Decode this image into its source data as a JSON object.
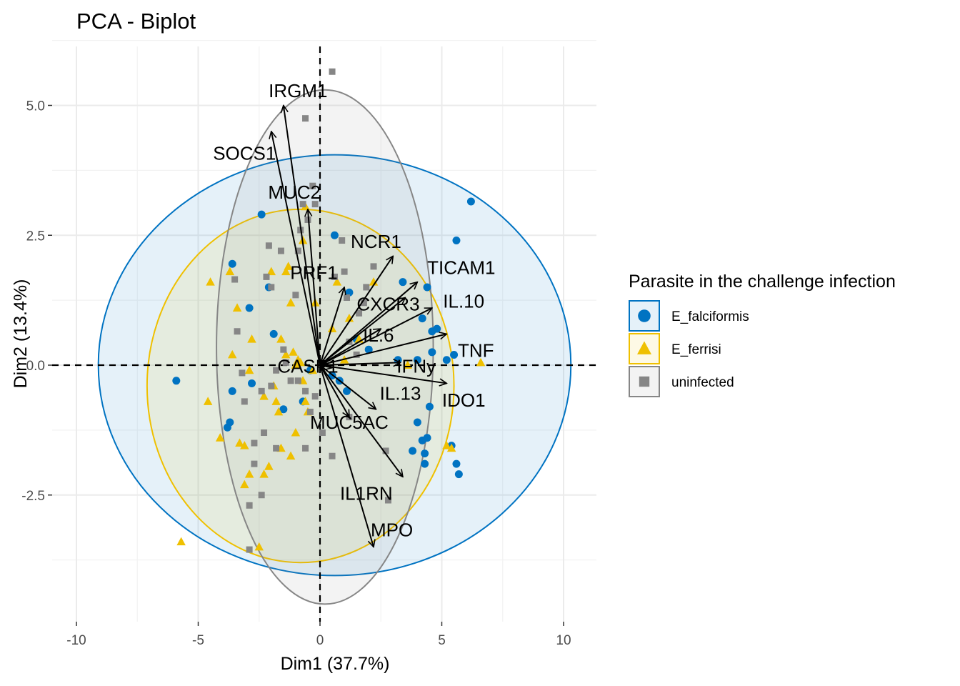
{
  "chart_data": {
    "type": "scatter",
    "title": "PCA - Biplot",
    "xlabel": "Dim1 (37.7%)",
    "ylabel": "Dim2 (13.4%)",
    "xlim": [
      -10,
      11.3
    ],
    "ylim": [
      -5.0,
      6.0
    ],
    "xticks": [
      -10,
      -5,
      0,
      5,
      10
    ],
    "xtick_labels": [
      "-10",
      "-5",
      "0",
      "5",
      "10"
    ],
    "yticks": [
      -2.5,
      0.0,
      2.5,
      5.0
    ],
    "ytick_labels": [
      "-2.5",
      "0.0",
      "2.5",
      "5.0"
    ],
    "grid": true,
    "legend": {
      "title": "Parasite in the challenge infection",
      "placement": "right"
    },
    "series": [
      {
        "name": "E_falciformis",
        "color": "#0073C2",
        "marker": "circle",
        "ellipse": {
          "cx": 0.6,
          "cy": 0.0,
          "rx": 9.7,
          "ry": 4.05
        },
        "points": [
          [
            -5.9,
            -0.3
          ],
          [
            -2.4,
            2.9
          ],
          [
            -3.6,
            1.95
          ],
          [
            -2.9,
            1.1
          ],
          [
            -2.1,
            1.5
          ],
          [
            -1.9,
            0.6
          ],
          [
            -3.6,
            -0.5
          ],
          [
            -2.8,
            -0.35
          ],
          [
            -3.8,
            -1.2
          ],
          [
            -3.7,
            -1.1
          ],
          [
            -1.5,
            -0.85
          ],
          [
            -0.7,
            -0.7
          ],
          [
            -0.4,
            -0.1
          ],
          [
            0.5,
            -0.2
          ],
          [
            0.8,
            -0.3
          ],
          [
            1.1,
            -0.5
          ],
          [
            1.2,
            1.4
          ],
          [
            0.6,
            2.5
          ],
          [
            1.5,
            0.5
          ],
          [
            2.0,
            0.3
          ],
          [
            3.2,
            0.1
          ],
          [
            3.4,
            1.6
          ],
          [
            4.0,
            0.1
          ],
          [
            4.5,
            -0.8
          ],
          [
            4.0,
            -1.1
          ],
          [
            4.2,
            -1.45
          ],
          [
            4.4,
            -1.4
          ],
          [
            3.8,
            -1.65
          ],
          [
            4.3,
            -1.7
          ],
          [
            4.3,
            -1.9
          ],
          [
            5.2,
            0.1
          ],
          [
            4.6,
            0.25
          ],
          [
            4.6,
            0.65
          ],
          [
            4.2,
            0.9
          ],
          [
            4.8,
            0.7
          ],
          [
            4.4,
            1.5
          ],
          [
            5.5,
            0.2
          ],
          [
            5.6,
            2.4
          ],
          [
            6.2,
            3.15
          ],
          [
            5.6,
            -1.9
          ],
          [
            5.7,
            -2.1
          ],
          [
            5.4,
            -1.55
          ]
        ]
      },
      {
        "name": "E_ferrisi",
        "color": "#EFC000",
        "marker": "triangle",
        "ellipse": {
          "cx": -0.8,
          "cy": -0.4,
          "rx": 6.3,
          "ry": 3.4
        },
        "points": [
          [
            -5.7,
            -3.4
          ],
          [
            -4.5,
            1.6
          ],
          [
            -4.6,
            -0.7
          ],
          [
            -4.1,
            -1.4
          ],
          [
            -3.7,
            1.8
          ],
          [
            -3.6,
            0.2
          ],
          [
            -3.3,
            -1.5
          ],
          [
            -3.1,
            -1.55
          ],
          [
            -3.1,
            -2.3
          ],
          [
            -3.4,
            1.1
          ],
          [
            -2.9,
            -0.1
          ],
          [
            -2.8,
            0.5
          ],
          [
            -2.3,
            -0.6
          ],
          [
            -2.3,
            -2.1
          ],
          [
            -2.1,
            -1.95
          ],
          [
            -1.9,
            -0.4
          ],
          [
            -1.8,
            -0.7
          ],
          [
            -1.7,
            -0.9
          ],
          [
            -1.6,
            -1.6
          ],
          [
            -1.4,
            1.8
          ],
          [
            -1.3,
            1.9
          ],
          [
            -1.2,
            1.2
          ],
          [
            -1.0,
            -1.3
          ],
          [
            -0.9,
            0.1
          ],
          [
            -0.7,
            -0.3
          ],
          [
            -0.6,
            -0.7
          ],
          [
            -0.5,
            -0.9
          ],
          [
            -0.2,
            1.2
          ],
          [
            -0.3,
            -0.1
          ],
          [
            -1.2,
            -1.75
          ],
          [
            -1.6,
            0.5
          ],
          [
            -1.4,
            0.2
          ],
          [
            -1.1,
            0.25
          ],
          [
            -1.0,
            0.0
          ],
          [
            -0.8,
            0.05
          ],
          [
            0.7,
            1.6
          ],
          [
            0.5,
            0.7
          ],
          [
            1.0,
            0.1
          ],
          [
            1.2,
            0.9
          ],
          [
            1.6,
            0.5
          ],
          [
            2.2,
            1.6
          ],
          [
            3.6,
            0.0
          ],
          [
            5.2,
            -1.55
          ],
          [
            5.4,
            -1.6
          ],
          [
            6.6,
            0.05
          ],
          [
            -2.5,
            -3.5
          ],
          [
            -0.6,
            3.05
          ],
          [
            -0.7,
            2.4
          ],
          [
            -2.9,
            -2.1
          ],
          [
            -2.0,
            1.8
          ]
        ]
      },
      {
        "name": "uninfected",
        "color": "#868686",
        "marker": "square",
        "ellipse": {
          "cx": 0.2,
          "cy": 0.35,
          "rx": 4.45,
          "ry": 4.95
        },
        "points": [
          [
            0.5,
            5.65
          ],
          [
            -0.6,
            4.75
          ],
          [
            -0.2,
            3.1
          ],
          [
            -0.3,
            3.45
          ],
          [
            -2.1,
            2.3
          ],
          [
            -1.6,
            2.2
          ],
          [
            -0.9,
            2.2
          ],
          [
            -2.2,
            1.7
          ],
          [
            -2.0,
            1.5
          ],
          [
            -1.0,
            1.35
          ],
          [
            -0.8,
            2.6
          ],
          [
            -0.7,
            3.1
          ],
          [
            -0.5,
            2.8
          ],
          [
            0.9,
            2.4
          ],
          [
            0.6,
            1.7
          ],
          [
            1.0,
            1.8
          ],
          [
            1.1,
            1.3
          ],
          [
            2.2,
            1.9
          ],
          [
            1.9,
            1.5
          ],
          [
            1.8,
            1.2
          ],
          [
            1.6,
            1.0
          ],
          [
            -3.4,
            0.65
          ],
          [
            -3.5,
            1.65
          ],
          [
            -3.2,
            -0.15
          ],
          [
            -3.1,
            -0.7
          ],
          [
            -2.4,
            -0.5
          ],
          [
            -2.0,
            -0.4
          ],
          [
            -1.8,
            -0.1
          ],
          [
            -1.5,
            0.3
          ],
          [
            -1.4,
            0.05
          ],
          [
            -1.2,
            -0.3
          ],
          [
            -0.9,
            -0.3
          ],
          [
            -0.6,
            -0.5
          ],
          [
            -0.4,
            -0.9
          ],
          [
            -0.2,
            -0.6
          ],
          [
            -2.3,
            -1.3
          ],
          [
            -2.7,
            -1.5
          ],
          [
            -2.7,
            -1.9
          ],
          [
            -1.8,
            -1.6
          ],
          [
            -0.6,
            -1.6
          ],
          [
            0.1,
            -1.3
          ],
          [
            0.5,
            -1.75
          ],
          [
            1.2,
            -1.0
          ],
          [
            2.7,
            -1.65
          ],
          [
            2.8,
            -2.6
          ],
          [
            -2.9,
            -2.7
          ],
          [
            -2.9,
            -3.55
          ],
          [
            -2.4,
            -2.5
          ],
          [
            1.2,
            0.45
          ],
          [
            1.5,
            0.2
          ]
        ]
      }
    ],
    "variables": [
      {
        "name": "IRGM1",
        "x": -1.5,
        "y": 5.0
      },
      {
        "name": "SOCS1",
        "x": -2.0,
        "y": 4.5
      },
      {
        "name": "MUC2",
        "x": -0.5,
        "y": 3.0
      },
      {
        "name": "NCR1",
        "x": 3.0,
        "y": 2.1
      },
      {
        "name": "PRF1",
        "x": 1.0,
        "y": 1.5
      },
      {
        "name": "TICAM1",
        "x": 4.0,
        "y": 1.6
      },
      {
        "name": "CXCR3",
        "x": 3.5,
        "y": 1.3
      },
      {
        "name": "IL.10",
        "x": 4.6,
        "y": 1.1
      },
      {
        "name": "IL.6",
        "x": 2.5,
        "y": 0.7
      },
      {
        "name": "TNF",
        "x": 5.2,
        "y": 0.6
      },
      {
        "name": "IFNy",
        "x": 3.3,
        "y": 0.05
      },
      {
        "name": "IDO1",
        "x": 5.2,
        "y": -0.35
      },
      {
        "name": "IL.13",
        "x": 2.3,
        "y": -0.85
      },
      {
        "name": "CASP1",
        "x": 0.5,
        "y": -0.05
      },
      {
        "name": "MUC5AC",
        "x": 1.2,
        "y": -1.0
      },
      {
        "name": "IL1RN",
        "x": 3.4,
        "y": -2.15
      },
      {
        "name": "MPO",
        "x": 2.2,
        "y": -3.5
      }
    ],
    "variable_label_positions": [
      {
        "name": "IRGM1",
        "x": -0.9,
        "y": 5.25
      },
      {
        "name": "SOCS1",
        "x": -3.1,
        "y": 4.05
      },
      {
        "name": "MUC2",
        "x": -1.05,
        "y": 3.3
      },
      {
        "name": "NCR1",
        "x": 2.3,
        "y": 2.35
      },
      {
        "name": "PRF1",
        "x": -0.25,
        "y": 1.75
      },
      {
        "name": "TICAM1",
        "x": 5.8,
        "y": 1.85
      },
      {
        "name": "CXCR3",
        "x": 2.8,
        "y": 1.15
      },
      {
        "name": "IL.10",
        "x": 5.9,
        "y": 1.2
      },
      {
        "name": "IL.6",
        "x": 2.4,
        "y": 0.55
      },
      {
        "name": "TNF",
        "x": 6.4,
        "y": 0.25
      },
      {
        "name": "IFNy",
        "x": 3.95,
        "y": -0.05
      },
      {
        "name": "IDO1",
        "x": 5.9,
        "y": -0.7
      },
      {
        "name": "IL.13",
        "x": 3.3,
        "y": -0.57
      },
      {
        "name": "CASP1",
        "x": -0.5,
        "y": -0.05
      },
      {
        "name": "MUC5AC",
        "x": 1.2,
        "y": -1.13
      },
      {
        "name": "IL1RN",
        "x": 1.9,
        "y": -2.5
      },
      {
        "name": "MPO",
        "x": 2.95,
        "y": -3.2
      }
    ]
  }
}
